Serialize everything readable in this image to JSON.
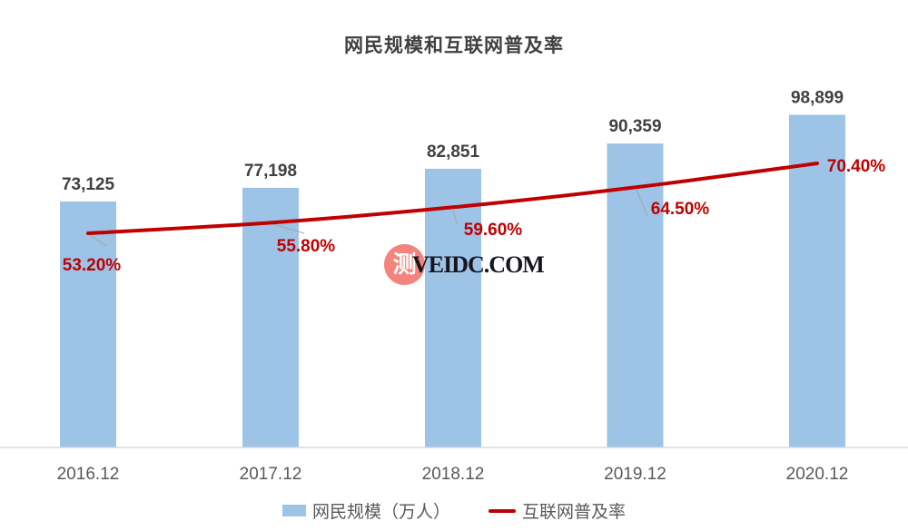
{
  "chart_data": {
    "type": "bar",
    "subtype": "bar+line combo",
    "title": "网民规模和互联网普及率",
    "categories": [
      "2016.12",
      "2017.12",
      "2018.12",
      "2019.12",
      "2020.12"
    ],
    "series": [
      {
        "name": "网民规模（万人）",
        "type": "bar",
        "values": [
          73125,
          77198,
          82851,
          90359,
          98899
        ],
        "labels": [
          "73,125",
          "77,198",
          "82,851",
          "90,359",
          "98,899"
        ],
        "color": "#9DC3E6"
      },
      {
        "name": "互联网普及率",
        "type": "line",
        "values": [
          53.2,
          55.8,
          59.6,
          64.5,
          70.4
        ],
        "labels": [
          "53.20%",
          "55.80%",
          "59.60%",
          "64.50%",
          "70.40%"
        ],
        "color": "#C00000"
      }
    ],
    "xlabel": "",
    "ylabel": "",
    "ylim": [
      0,
      105000
    ],
    "y2lim": [
      48,
      72
    ],
    "grid": "off",
    "legend_position": "bottom",
    "data_labels": "on",
    "colors": {
      "bar_fill": "#9DC3E6",
      "line_stroke": "#C00000",
      "value_label": "#404040",
      "axis_label": "#595959",
      "axis_line": "#D9D9D9",
      "leader_line": "#A6A6A6",
      "title": "#404040"
    }
  },
  "watermark": {
    "badge_char": "测",
    "text": "VEIDC.COM"
  }
}
